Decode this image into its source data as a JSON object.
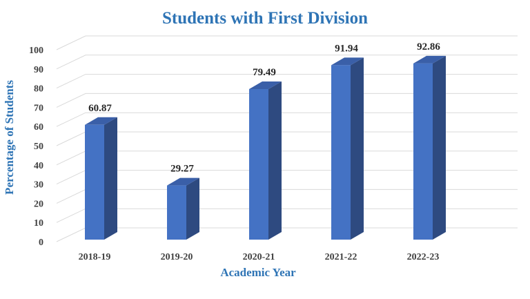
{
  "chart_data": {
    "type": "bar",
    "title": "Students with First Division",
    "xlabel": "Academic Year",
    "ylabel": "Percentage of Students",
    "categories": [
      "2018-19",
      "2019-20",
      "2020-21",
      "2021-22",
      "2022-23"
    ],
    "values": [
      60.87,
      29.27,
      79.49,
      91.94,
      92.86
    ],
    "data_labels": [
      "60.87",
      "29.27",
      "79.49",
      "91.94",
      "92.86"
    ],
    "y_ticks": [
      "0",
      "10",
      "20",
      "30",
      "40",
      "50",
      "60",
      "70",
      "80",
      "90",
      "100"
    ],
    "ylim": [
      0,
      100
    ],
    "grid": true,
    "legend": "none",
    "style": "3d-column",
    "colors": {
      "bar_front": "#4472c4",
      "bar_side": "#2e4a80",
      "bar_top": "#3a5fa8",
      "title": "#2e74b5",
      "axis_title": "#2e74b5",
      "grid": "#d9d9d9"
    }
  }
}
